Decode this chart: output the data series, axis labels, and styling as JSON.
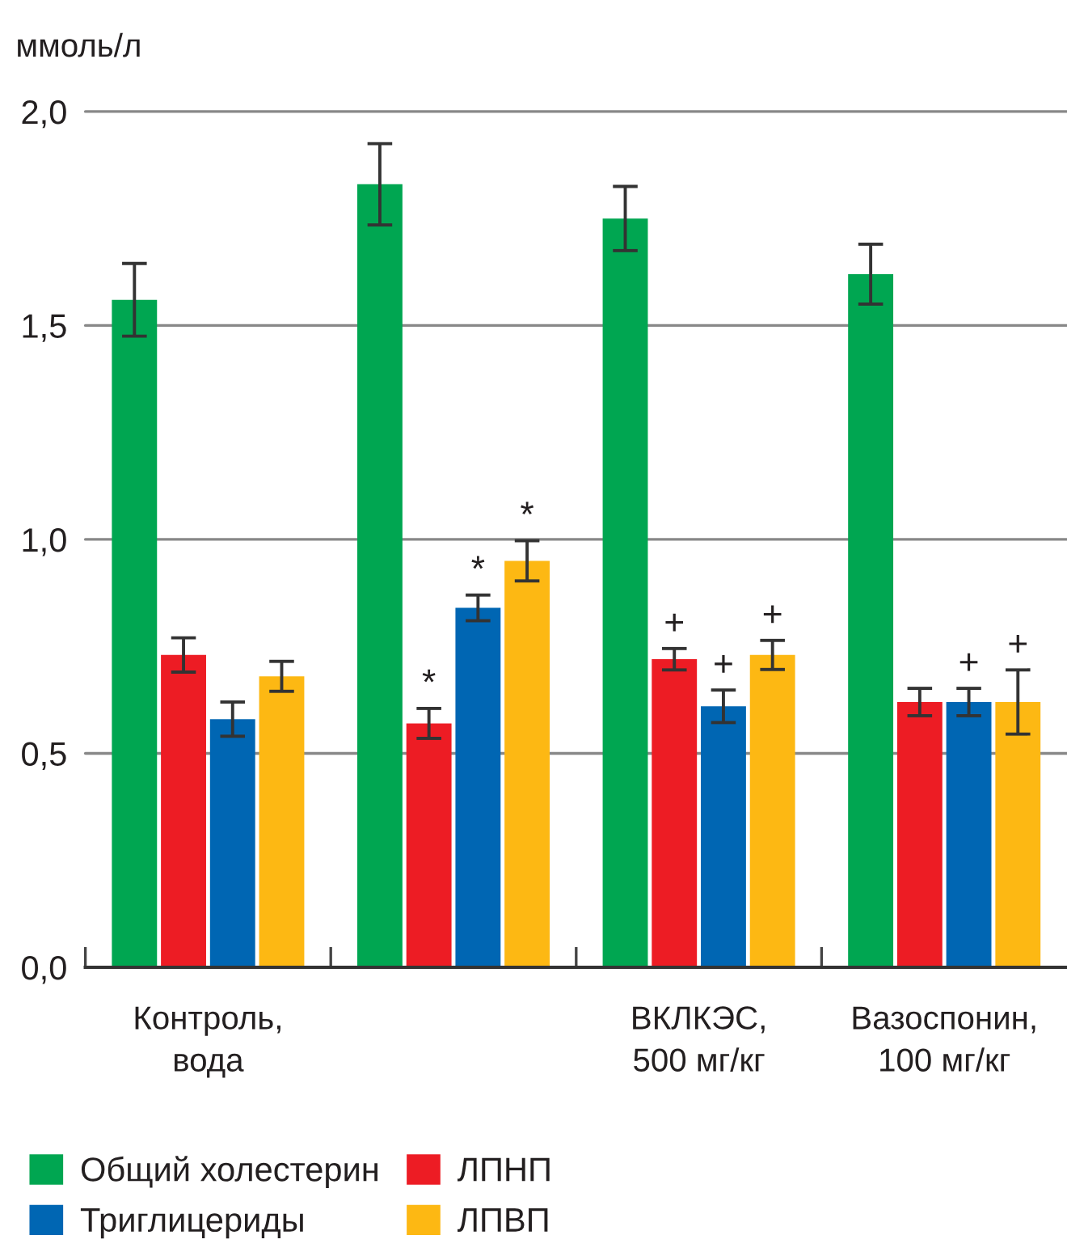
{
  "chart_data": {
    "type": "bar",
    "ylabel": "ммоль/л",
    "categories": [
      "Контроль,\nвода",
      null,
      "ВКЛКЭС,\n500 мг/кг",
      "Вазоспонин,\n100 мг/кг"
    ],
    "series": [
      {
        "name": "Общий холестерин",
        "color": "#00a651",
        "values": [
          1.56,
          1.83,
          1.75,
          1.62
        ],
        "errors": [
          0.085,
          0.095,
          0.075,
          0.07
        ]
      },
      {
        "name": "ЛПНП",
        "color": "#ed1c24",
        "values": [
          0.73,
          0.57,
          0.72,
          0.62
        ],
        "errors": [
          0.04,
          0.035,
          0.025,
          0.032
        ],
        "value_labels": [
          null,
          "*",
          "+",
          null
        ]
      },
      {
        "name": "Триглицериды",
        "color": "#0066b3",
        "values": [
          0.58,
          0.84,
          0.61,
          0.62
        ],
        "errors": [
          0.04,
          0.03,
          0.038,
          0.032
        ],
        "value_labels": [
          null,
          "*",
          "+",
          "+"
        ]
      },
      {
        "name": "ЛПВП",
        "color": "#fdb813",
        "values": [
          0.68,
          0.95,
          0.73,
          0.62
        ],
        "errors": [
          0.035,
          0.047,
          0.034,
          0.075
        ],
        "value_labels": [
          null,
          "*",
          "+",
          "+"
        ]
      }
    ],
    "ylim": [
      0,
      2.0
    ],
    "yticks": [
      {
        "value": 0,
        "label": "0,0"
      },
      {
        "value": 0.5,
        "label": "0,5"
      },
      {
        "value": 1.0,
        "label": "1,0"
      },
      {
        "value": 1.5,
        "label": "1,5"
      },
      {
        "value": 2.0,
        "label": "2,0"
      }
    ],
    "grid": "y",
    "legend": "bottom"
  }
}
